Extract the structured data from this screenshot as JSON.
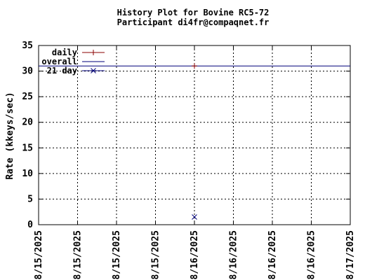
{
  "chart_data": {
    "type": "line",
    "title": "History Plot for Bovine RC5-72",
    "subtitle": "Participant di4fr@compaqnet.fr",
    "xlabel": "",
    "ylabel": "Rate (kkeys/sec)",
    "ylim": [
      0,
      35
    ],
    "yticks": [
      0,
      5,
      10,
      15,
      20,
      25,
      30,
      35
    ],
    "xticks": [
      "08/15/2025",
      "08/15/2025",
      "08/15/2025",
      "08/15/2025",
      "08/16/2025",
      "08/16/2025",
      "08/16/2025",
      "08/16/2025",
      "08/17/2025"
    ],
    "grid": true,
    "legend_position": "top-left",
    "series": [
      {
        "name": "daily",
        "color": "#8b0000",
        "marker": "plus",
        "points": [
          {
            "x": 4,
            "y": 31
          }
        ]
      },
      {
        "name": "overall",
        "color": "#00007a",
        "marker": "line",
        "value": 31
      },
      {
        "name": "21 day",
        "color": "#00007a",
        "marker": "cross",
        "points": [
          {
            "x": 4,
            "y": 1.5
          }
        ]
      }
    ]
  }
}
